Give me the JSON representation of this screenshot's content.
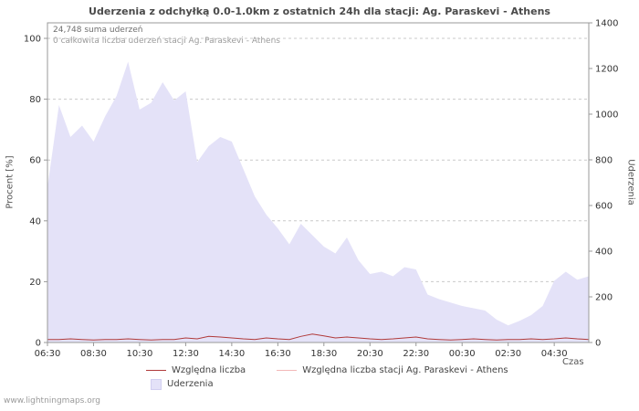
{
  "footer": {
    "watermark": "www.lightningmaps.org"
  },
  "chart_data": {
    "type": "area",
    "title": "Uderzenia z odchyłką 0.0-1.0km z ostatnich 24h dla stacji: Ag. Paraskevi - Athens",
    "annotation_sum": "24,748 suma uderzeń",
    "annotation_station": "0 całkowita liczba uderzeń stacji Ag. Paraskevi - Athens",
    "ylabel_left": "Procent  [%]",
    "ylabel_right": "Uderzenia",
    "xlabel": "Czas",
    "grid": true,
    "legend_position": "bottom",
    "x_ticks": [
      "06:30",
      "08:30",
      "10:30",
      "12:30",
      "14:30",
      "16:30",
      "18:30",
      "20:30",
      "22:30",
      "00:30",
      "02:30",
      "04:30"
    ],
    "y_left_ticks": [
      0,
      20,
      40,
      60,
      80,
      100
    ],
    "y_right_ticks": [
      0,
      200,
      400,
      600,
      800,
      1000,
      1200,
      1400
    ],
    "y_left_range": [
      0,
      100
    ],
    "y_right_range": [
      0,
      1400
    ],
    "x_step_minutes": 30,
    "x_start": "06:30",
    "series": [
      {
        "name": "Uderzenia",
        "type": "area",
        "axis": "right",
        "color": "#e4e2f8",
        "values": [
          680,
          1040,
          900,
          950,
          880,
          990,
          1080,
          1230,
          1020,
          1050,
          1140,
          1060,
          1100,
          790,
          860,
          900,
          880,
          760,
          640,
          560,
          500,
          430,
          520,
          470,
          420,
          390,
          460,
          360,
          300,
          310,
          290,
          330,
          320,
          210,
          190,
          175,
          160,
          150,
          140,
          100,
          75,
          95,
          120,
          160,
          270,
          310,
          275,
          290
        ]
      },
      {
        "name": "Względna liczba",
        "type": "line",
        "axis": "left",
        "color": "#b03a3a",
        "values": [
          1,
          1,
          1.2,
          1,
          0.8,
          1,
          1,
          1.2,
          1,
          0.8,
          1,
          1,
          1.5,
          1.2,
          2,
          1.8,
          1.5,
          1.2,
          1,
          1.5,
          1.2,
          1,
          2,
          2.8,
          2.2,
          1.5,
          1.8,
          1.5,
          1.2,
          1,
          1.2,
          1.5,
          1.8,
          1.2,
          1,
          0.8,
          1,
          1.2,
          1,
          0.8,
          1,
          1,
          1.2,
          1,
          1.2,
          1.5,
          1.2,
          1
        ]
      },
      {
        "name": "Względna liczba stacji Ag. Paraskevi - Athens",
        "type": "line",
        "axis": "left",
        "color": "#f2b8b8",
        "values": [
          0,
          0,
          0,
          0,
          0,
          0,
          0,
          0,
          0,
          0,
          0,
          0,
          0,
          0,
          0,
          0,
          0,
          0,
          0,
          0,
          0,
          0,
          0,
          0,
          0,
          0,
          0,
          0,
          0,
          0,
          0,
          0,
          0,
          0,
          0,
          0,
          0,
          0,
          0,
          0,
          0,
          0,
          0,
          0,
          0,
          0,
          0,
          0
        ]
      }
    ]
  }
}
